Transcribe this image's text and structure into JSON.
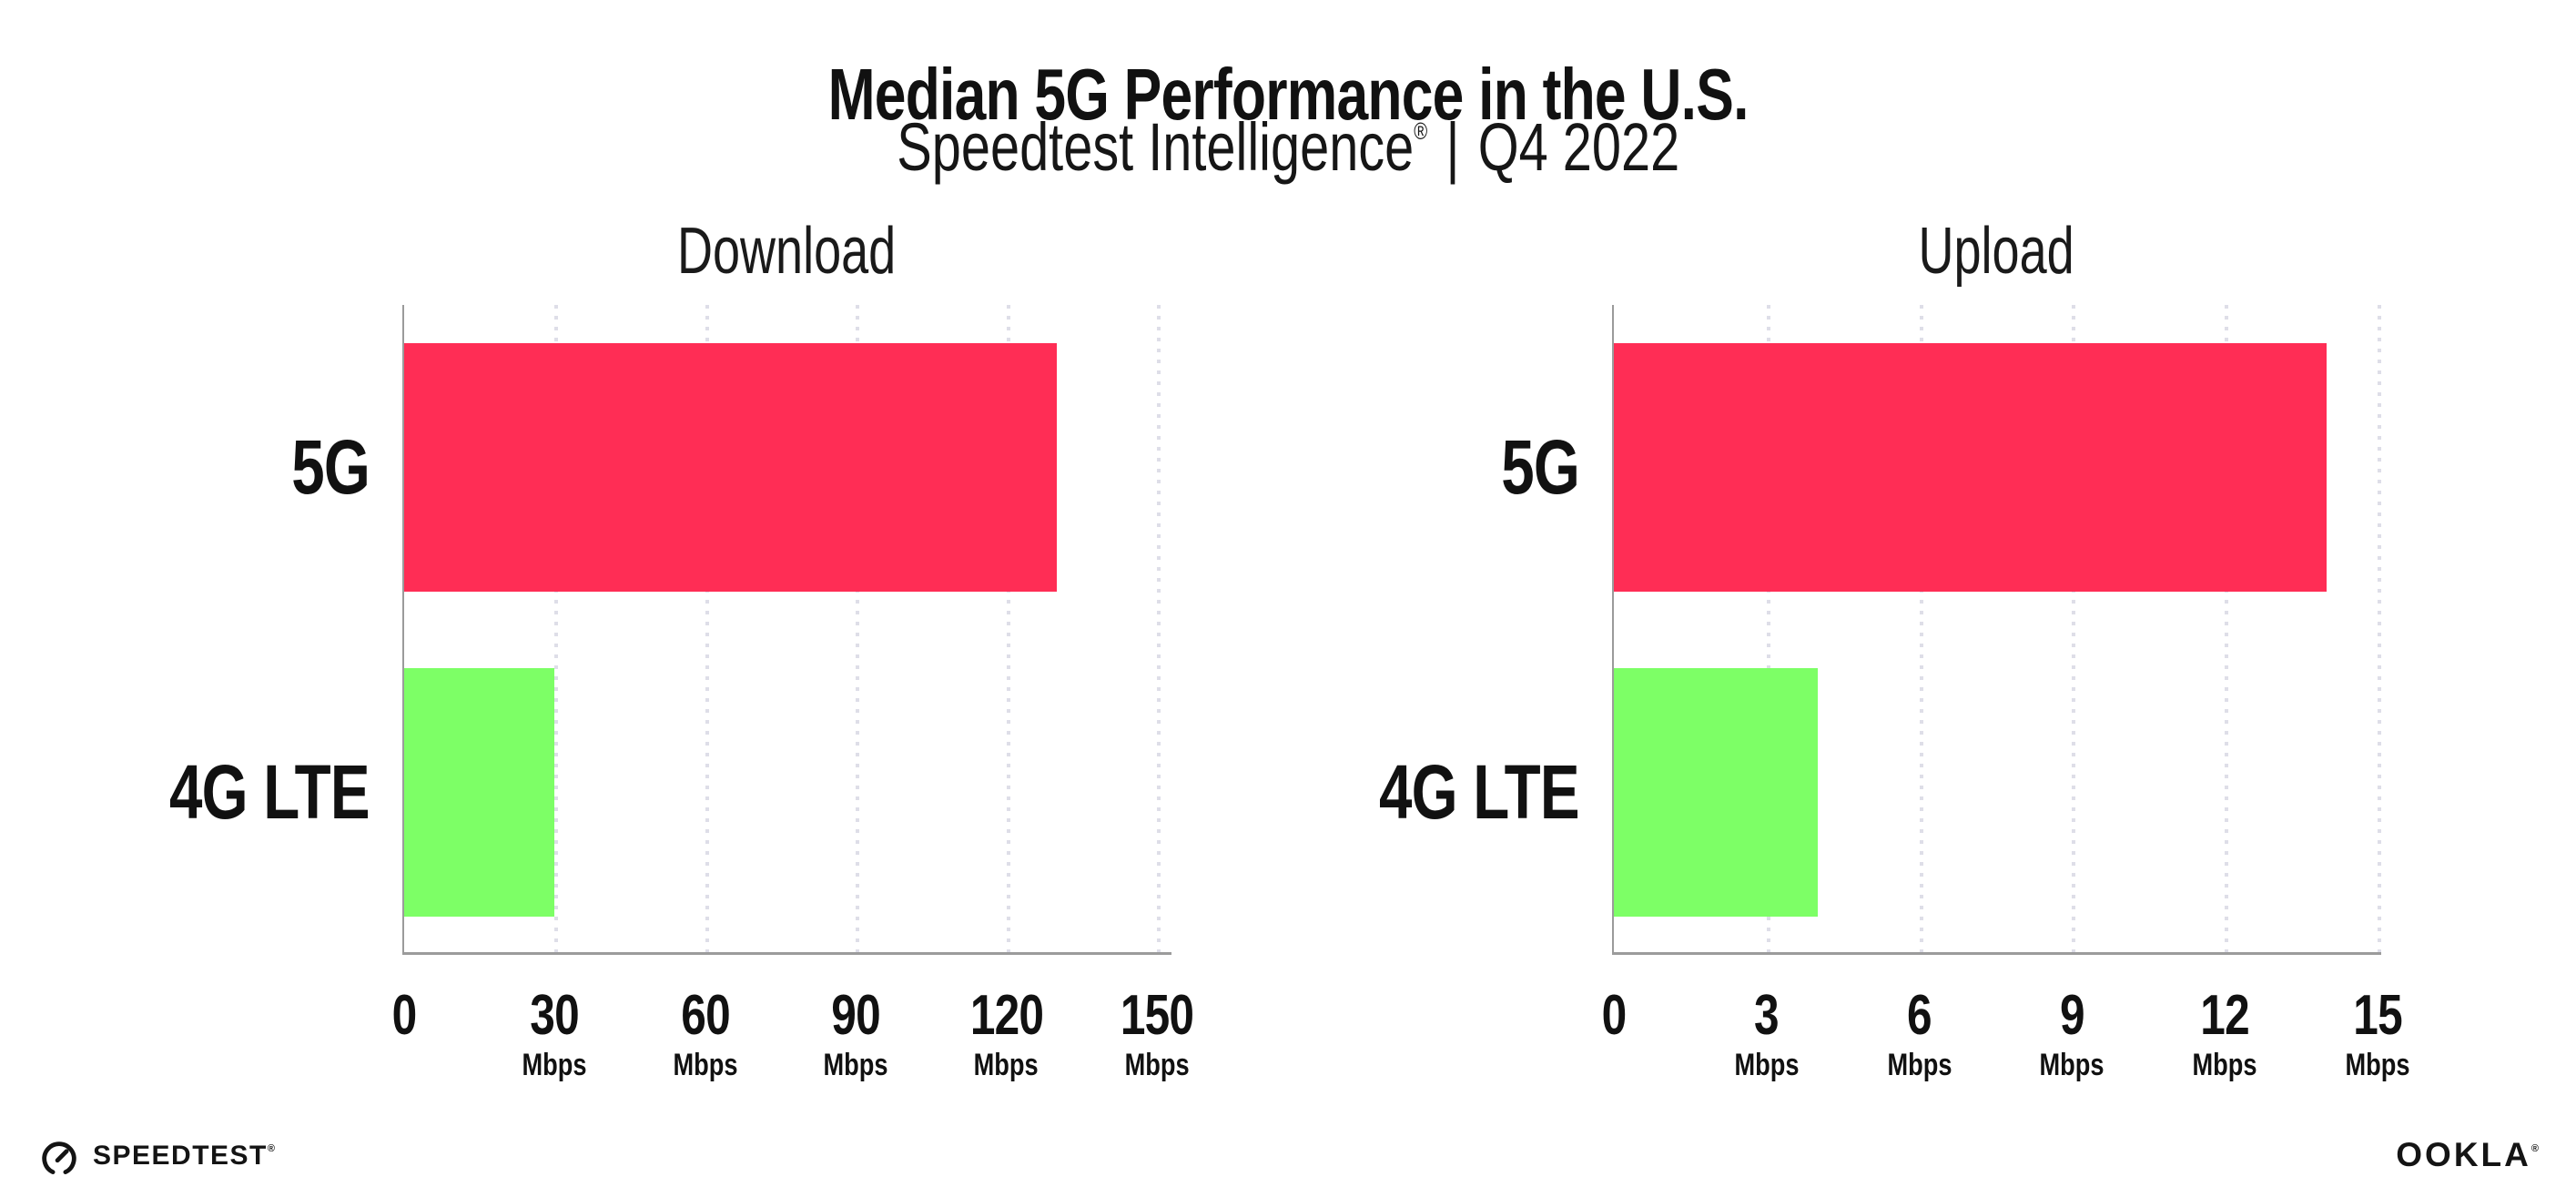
{
  "header": {
    "title": "Median 5G Performance in the U.S.",
    "subtitle": {
      "brand": "Speedtest Intelligence",
      "reg_mark": "®",
      "separator": "|",
      "period": "Q4 2022"
    }
  },
  "chart_data": [
    {
      "type": "bar",
      "orientation": "horizontal",
      "title": "Download",
      "categories": [
        "5G",
        "4G LTE"
      ],
      "values": [
        130,
        30
      ],
      "value_unit": "Mbps",
      "xlim": [
        0,
        150
      ],
      "xticks": [
        0,
        30,
        60,
        90,
        120,
        150
      ],
      "tick_unit": "Mbps",
      "grid": "dotted vertical gridlines",
      "legend": "none",
      "bar_colors": [
        "#FF2D55",
        "#7DFF66"
      ]
    },
    {
      "type": "bar",
      "orientation": "horizontal",
      "title": "Upload",
      "categories": [
        "5G",
        "4G LTE"
      ],
      "values": [
        14,
        4
      ],
      "value_unit": "Mbps",
      "xlim": [
        0,
        15
      ],
      "xticks": [
        0,
        3,
        6,
        9,
        12,
        15
      ],
      "tick_unit": "Mbps",
      "grid": "dotted vertical gridlines",
      "legend": "none",
      "bar_colors": [
        "#FF2D55",
        "#7DFF66"
      ]
    }
  ],
  "footer": {
    "speedtest_icon": "gauge-icon",
    "speedtest_logo_text": "SPEEDTEST",
    "speedtest_reg": "®",
    "ookla_logo_text": "OOKLA",
    "ookla_reg": "®"
  },
  "colors": {
    "bar_5g": "#FF2D55",
    "bar_4g_lte": "#7DFF66",
    "gridline": "#DEDEE8",
    "axis": "#9B9B9B",
    "text": "#111111",
    "background": "#FFFFFF"
  }
}
